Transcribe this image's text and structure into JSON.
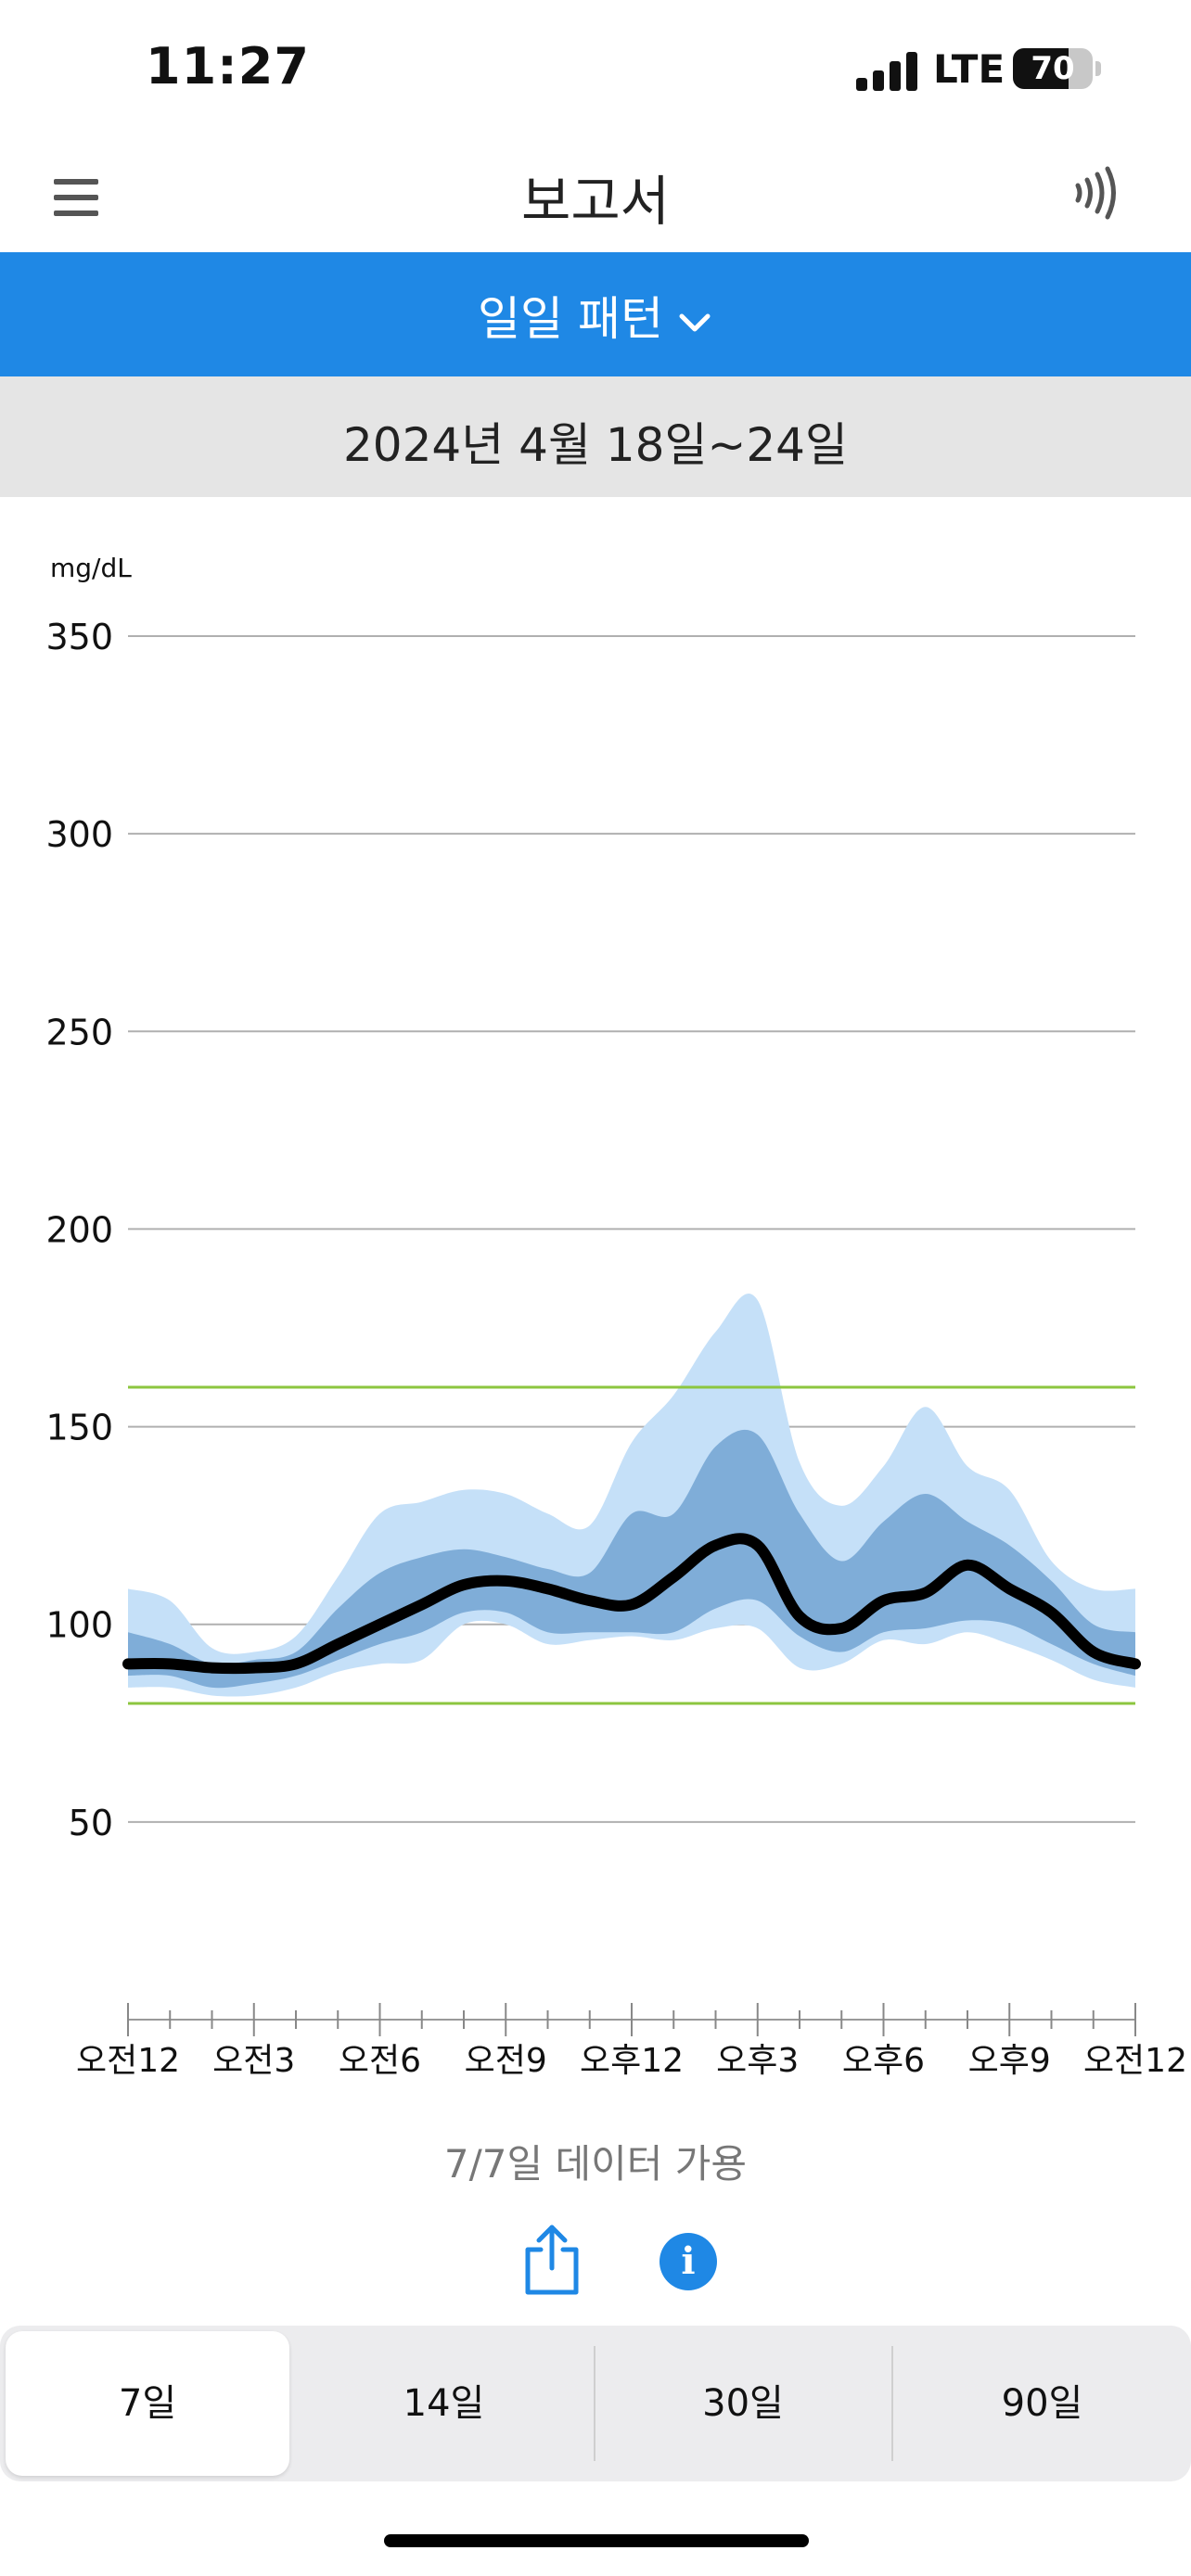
{
  "status": {
    "time": "11:27",
    "network": "LTE",
    "battery": "70",
    "battery_level": 0.7
  },
  "header": {
    "title": "보고서"
  },
  "pattern": {
    "label": "일일 패턴"
  },
  "date_range": "2024년 4월 18일~24일",
  "colors": {
    "accent": "#1f88e5",
    "outer_band": "#c5e0f8",
    "inner_band": "#7fadd8",
    "median": "#000000",
    "target": "#8cc63f",
    "grid": "#b0b0b0"
  },
  "chart_data": {
    "type": "area",
    "title": "일일 패턴",
    "ylabel": "mg/dL",
    "xlabel": "",
    "ylim": [
      0,
      350
    ],
    "yticks": [
      50,
      100,
      150,
      200,
      250,
      300,
      350
    ],
    "xlim": [
      0,
      24
    ],
    "xticks": [
      0,
      3,
      6,
      9,
      12,
      15,
      18,
      21,
      24
    ],
    "xtick_labels": [
      "오전12",
      "오전3",
      "오전6",
      "오전9",
      "오후12",
      "오후3",
      "오후6",
      "오후9",
      "오전12"
    ],
    "grid": true,
    "target_range": [
      80,
      160
    ],
    "x": [
      0,
      1,
      2,
      3,
      4,
      5,
      6,
      7,
      8,
      9,
      10,
      11,
      12,
      13,
      14,
      15,
      16,
      17,
      18,
      19,
      20,
      21,
      22,
      23,
      24
    ],
    "series": [
      {
        "name": "p90",
        "values": [
          109,
          106,
          94,
          93,
          97,
          112,
          128,
          131,
          134,
          133,
          128,
          125,
          146,
          158,
          174,
          182,
          141,
          130,
          140,
          155,
          140,
          134,
          116,
          109,
          109
        ]
      },
      {
        "name": "p75",
        "values": [
          98,
          95,
          90,
          91,
          93,
          104,
          113,
          117,
          119,
          117,
          114,
          113,
          128,
          128,
          145,
          148,
          128,
          116,
          126,
          133,
          126,
          120,
          111,
          100,
          98
        ]
      },
      {
        "name": "median",
        "values": [
          90,
          90,
          89,
          89,
          90,
          95,
          100,
          105,
          110,
          111,
          109,
          106,
          105,
          112,
          120,
          120,
          102,
          99,
          106,
          108,
          115,
          109,
          103,
          93,
          90
        ]
      },
      {
        "name": "p25",
        "values": [
          87,
          87,
          84,
          85,
          87,
          91,
          95,
          98,
          103,
          103,
          98,
          98,
          98,
          98,
          104,
          106,
          97,
          93,
          98,
          99,
          101,
          100,
          95,
          90,
          87
        ]
      },
      {
        "name": "p10",
        "values": [
          84,
          84,
          82,
          82,
          84,
          88,
          90,
          91,
          100,
          100,
          95,
          96,
          97,
          96,
          99,
          99,
          89,
          90,
          96,
          95,
          98,
          95,
          91,
          86,
          84
        ]
      }
    ]
  },
  "footer": {
    "availability": "7/7일 데이터 가용"
  },
  "ranges": [
    {
      "label": "7일",
      "selected": true
    },
    {
      "label": "14일",
      "selected": false
    },
    {
      "label": "30일",
      "selected": false
    },
    {
      "label": "90일",
      "selected": false
    }
  ]
}
